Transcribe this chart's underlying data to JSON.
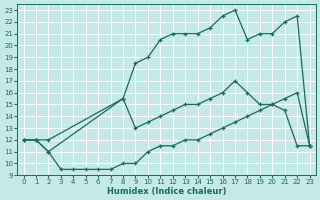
{
  "xlabel": "Humidex (Indice chaleur)",
  "bg_color": "#c5e8e8",
  "grid_color": "#ffffff",
  "line_color": "#1a6b5a",
  "xlim": [
    -0.5,
    23.5
  ],
  "ylim": [
    9,
    23.5
  ],
  "xticks": [
    0,
    1,
    2,
    3,
    4,
    5,
    6,
    7,
    8,
    9,
    10,
    11,
    12,
    13,
    14,
    15,
    16,
    17,
    18,
    19,
    20,
    21,
    22,
    23
  ],
  "yticks": [
    9,
    10,
    11,
    12,
    13,
    14,
    15,
    16,
    17,
    18,
    19,
    20,
    21,
    22,
    23
  ],
  "line_top_x": [
    0,
    1,
    2,
    8,
    9,
    10,
    11,
    12,
    13,
    14,
    15,
    16,
    17,
    18,
    19,
    20,
    21,
    22,
    23
  ],
  "line_top_y": [
    12,
    12,
    12,
    15.5,
    18.5,
    19,
    20.5,
    21,
    21,
    21,
    21.5,
    22.5,
    23,
    20.5,
    21,
    21,
    22,
    22.5,
    11.5
  ],
  "line_mid_x": [
    0,
    1,
    2,
    8,
    9,
    10,
    11,
    12,
    13,
    14,
    15,
    16,
    17,
    18,
    19,
    20,
    21,
    22,
    23
  ],
  "line_mid_y": [
    12,
    12,
    11,
    15.5,
    13,
    13.5,
    14,
    14.5,
    15,
    15,
    15.5,
    16,
    17,
    16,
    15,
    15,
    14.5,
    11.5,
    11.5
  ],
  "line_bot_x": [
    0,
    1,
    2,
    3,
    4,
    5,
    6,
    7,
    8,
    9,
    10,
    11,
    12,
    13,
    14,
    15,
    16,
    17,
    18,
    19,
    20,
    21,
    22,
    23
  ],
  "line_bot_y": [
    12,
    12,
    11,
    9.5,
    9.5,
    9.5,
    9.5,
    9.5,
    10,
    10,
    11,
    11.5,
    11.5,
    12,
    12,
    12.5,
    13,
    13.5,
    14,
    14.5,
    15,
    15.5,
    16,
    11.5
  ]
}
